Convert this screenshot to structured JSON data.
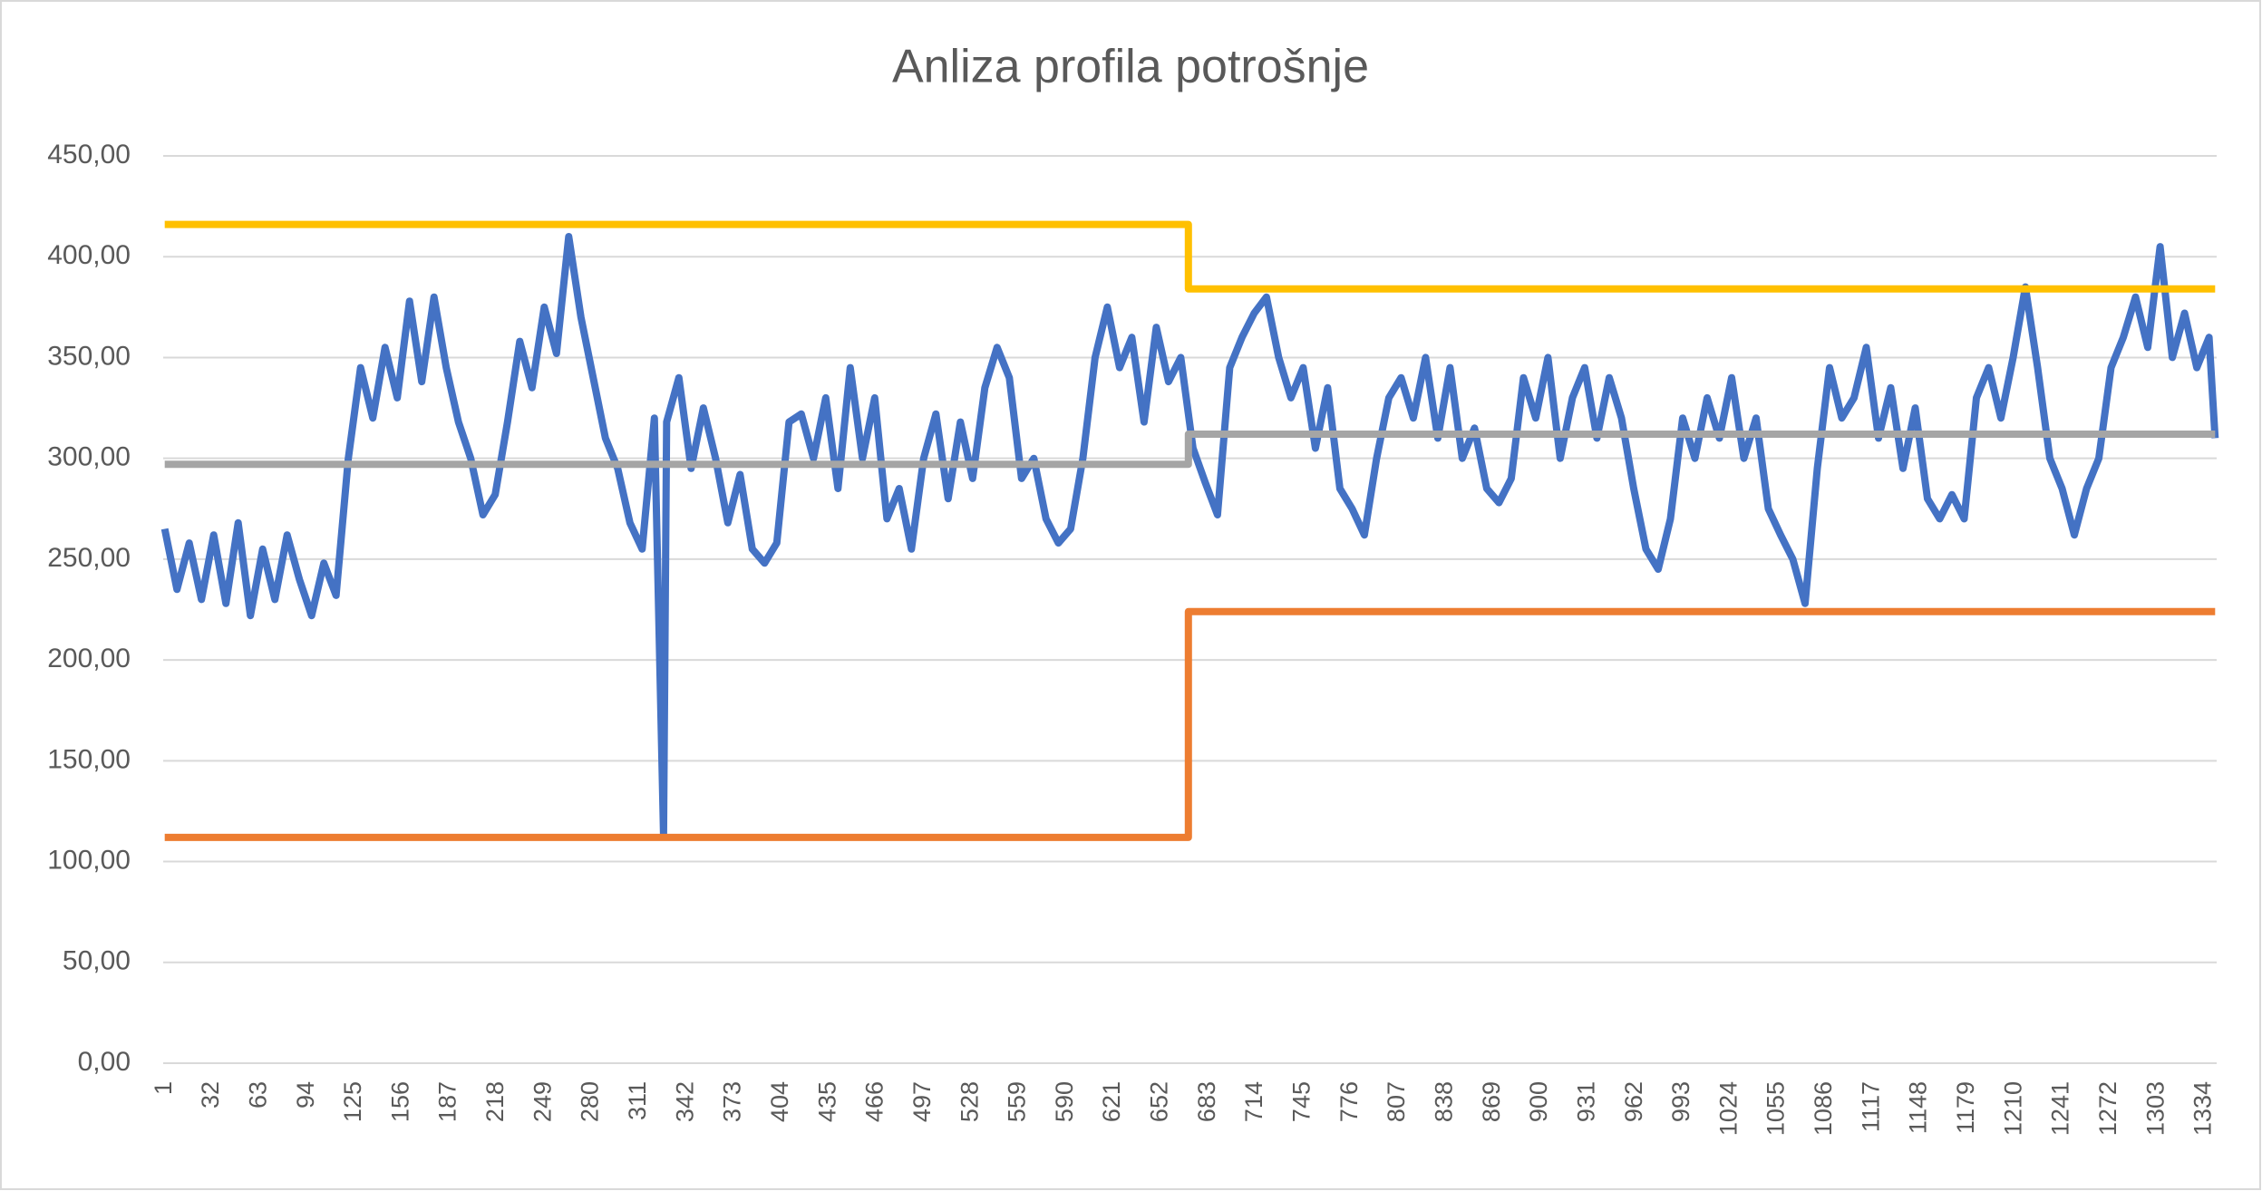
{
  "chart_data": {
    "type": "line",
    "title": "Anliza profila potrošnje",
    "xlim": [
      0,
      1342
    ],
    "xticks": [
      1,
      32,
      63,
      94,
      125,
      156,
      187,
      218,
      249,
      280,
      311,
      342,
      373,
      404,
      435,
      466,
      497,
      528,
      559,
      590,
      621,
      652,
      683,
      714,
      745,
      776,
      807,
      838,
      869,
      900,
      931,
      962,
      993,
      1024,
      1055,
      1086,
      1117,
      1148,
      1179,
      1210,
      1241,
      1272,
      1303,
      1334
    ],
    "ylim": [
      0,
      450
    ],
    "yticks": [
      {
        "value": 0,
        "label": "0,00"
      },
      {
        "value": 50,
        "label": "50,00"
      },
      {
        "value": 100,
        "label": "100,00"
      },
      {
        "value": 150,
        "label": "150,00"
      },
      {
        "value": 200,
        "label": "200,00"
      },
      {
        "value": 250,
        "label": "250,00"
      },
      {
        "value": 300,
        "label": "300,00"
      },
      {
        "value": 350,
        "label": "350,00"
      },
      {
        "value": 400,
        "label": "400,00"
      },
      {
        "value": 450,
        "label": "450,00"
      }
    ],
    "grid": true,
    "series": [
      {
        "color": "#4472c4",
        "x": [
          1,
          9,
          17,
          25,
          33,
          41,
          49,
          57,
          65,
          73,
          81,
          89,
          97,
          105,
          113,
          121,
          129,
          137,
          145,
          153,
          161,
          169,
          177,
          185,
          193,
          201,
          209,
          217,
          225,
          233,
          241,
          249,
          257,
          265,
          273,
          281,
          289,
          297,
          305,
          313,
          321,
          327,
          329,
          337,
          345,
          353,
          361,
          369,
          377,
          385,
          393,
          401,
          409,
          417,
          425,
          433,
          441,
          449,
          457,
          465,
          473,
          481,
          489,
          497,
          505,
          513,
          521,
          529,
          537,
          545,
          553,
          561,
          569,
          577,
          585,
          593,
          601,
          609,
          617,
          625,
          633,
          641,
          649,
          657,
          665,
          673,
          681,
          689,
          697,
          705,
          713,
          721,
          729,
          737,
          745,
          753,
          761,
          769,
          777,
          785,
          793,
          801,
          809,
          817,
          825,
          833,
          841,
          849,
          857,
          865,
          873,
          881,
          889,
          897,
          905,
          913,
          921,
          929,
          937,
          945,
          953,
          961,
          969,
          977,
          985,
          993,
          1001,
          1009,
          1017,
          1025,
          1033,
          1041,
          1049,
          1057,
          1065,
          1073,
          1081,
          1089,
          1097,
          1105,
          1113,
          1121,
          1129,
          1137,
          1145,
          1153,
          1161,
          1169,
          1177,
          1185,
          1193,
          1201,
          1209,
          1217,
          1225,
          1233,
          1241,
          1249,
          1257,
          1265,
          1273,
          1281,
          1289,
          1297,
          1305,
          1313,
          1321,
          1329,
          1337,
          1341
        ],
        "values": [
          265,
          235,
          258,
          230,
          262,
          228,
          268,
          222,
          255,
          230,
          262,
          240,
          222,
          248,
          232,
          300,
          345,
          320,
          355,
          330,
          378,
          338,
          380,
          345,
          318,
          300,
          272,
          282,
          318,
          358,
          335,
          375,
          352,
          410,
          370,
          340,
          310,
          295,
          268,
          255,
          320,
          113,
          318,
          340,
          295,
          325,
          300,
          268,
          292,
          255,
          248,
          258,
          318,
          322,
          300,
          330,
          285,
          345,
          300,
          330,
          270,
          285,
          255,
          300,
          322,
          280,
          318,
          290,
          335,
          355,
          340,
          290,
          300,
          270,
          258,
          265,
          300,
          350,
          375,
          345,
          360,
          318,
          365,
          338,
          350,
          305,
          288,
          272,
          345,
          360,
          372,
          380,
          350,
          330,
          345,
          305,
          335,
          285,
          275,
          262,
          300,
          330,
          340,
          320,
          350,
          310,
          345,
          300,
          315,
          285,
          278,
          290,
          340,
          320,
          350,
          300,
          330,
          345,
          310,
          340,
          320,
          285,
          255,
          245,
          270,
          320,
          300,
          330,
          310,
          340,
          300,
          320,
          275,
          262,
          250,
          228,
          295,
          345,
          320,
          330,
          355,
          310,
          335,
          295,
          325,
          280,
          270,
          282,
          270,
          330,
          345,
          320,
          350,
          385,
          345,
          300,
          285,
          262,
          285,
          300,
          345,
          360,
          380,
          355,
          405,
          350,
          372,
          345,
          360,
          310
        ]
      },
      {
        "color": "#ffc000",
        "x": [
          1,
          670,
          670,
          1341
        ],
        "values": [
          416,
          416,
          384,
          384
        ]
      },
      {
        "color": "#a5a5a5",
        "x": [
          1,
          670,
          670,
          1341
        ],
        "values": [
          297,
          297,
          312,
          312
        ]
      },
      {
        "color": "#ed7d31",
        "x": [
          1,
          670,
          670,
          1341
        ],
        "values": [
          112,
          112,
          224,
          224
        ]
      }
    ]
  }
}
